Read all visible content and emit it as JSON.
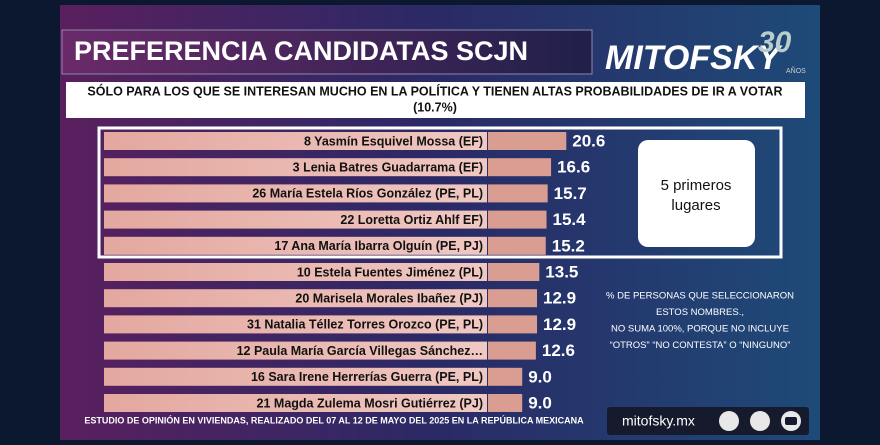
{
  "chart_data": {
    "type": "bar",
    "orientation": "horizontal",
    "title": "PREFERENCIA CANDIDATAS SCJN",
    "subtitle": [
      "SÓLO PARA LOS QUE SE INTERESAN MUCHO EN LA POLÍTICA Y TIENEN ALTAS PROBABILIDADES DE IR A VOTAR",
      "(10.7%)"
    ],
    "logo": {
      "name": "MITOFSKY",
      "years": "30",
      "years_label": "AÑOS"
    },
    "categories": [
      "8 Yasmín Esquivel Mossa (EF)",
      "3 Lenia Batres Guadarrama (EF)",
      "26 María Estela Ríos González (PE, PL)",
      "22 Loretta Ortiz Ahlf EF)",
      "17 Ana María Ibarra Olguín (PE, PJ)",
      "10 Estela Fuentes Jiménez (PL)",
      "20 Marisela Morales Ibañez (PJ)",
      "31 Natalia Téllez Torres Orozco (PE, PL)",
      "12 Paula María García Villegas Sánchez…",
      "16 Sara Irene Herrerías Guerra (PE, PL)",
      "21 Magda Zulema Mosri Gutiérrez (PJ)"
    ],
    "values": [
      20.6,
      16.6,
      15.7,
      15.4,
      15.2,
      13.5,
      12.9,
      12.9,
      12.6,
      9.0,
      9.0
    ],
    "value_labels": [
      "20.6",
      "16.6",
      "15.7",
      "15.4",
      "15.2",
      "13.5",
      "12.9",
      "12.9",
      "12.6",
      "9.0",
      "9.0"
    ],
    "color": "#d99d92",
    "highlight_box": [
      "5 primeros",
      "lugares"
    ],
    "note": [
      "% DE PERSONAS QUE SELECCIONARON",
      "ESTOS NOMBRES.,",
      "NO SUMA 100%, PORQUE NO INCLUYE",
      "“OTROS” “NO CONTESTA” O “NINGUNO”"
    ],
    "source": "ESTUDIO DE OPINIÓN EN VIVIENDAS, REALIZADO DEL 07 AL 12 DE MAYO DEL 2025 EN LA REPÚBLICA MEXICANA",
    "website": "mitofsky.mx"
  }
}
